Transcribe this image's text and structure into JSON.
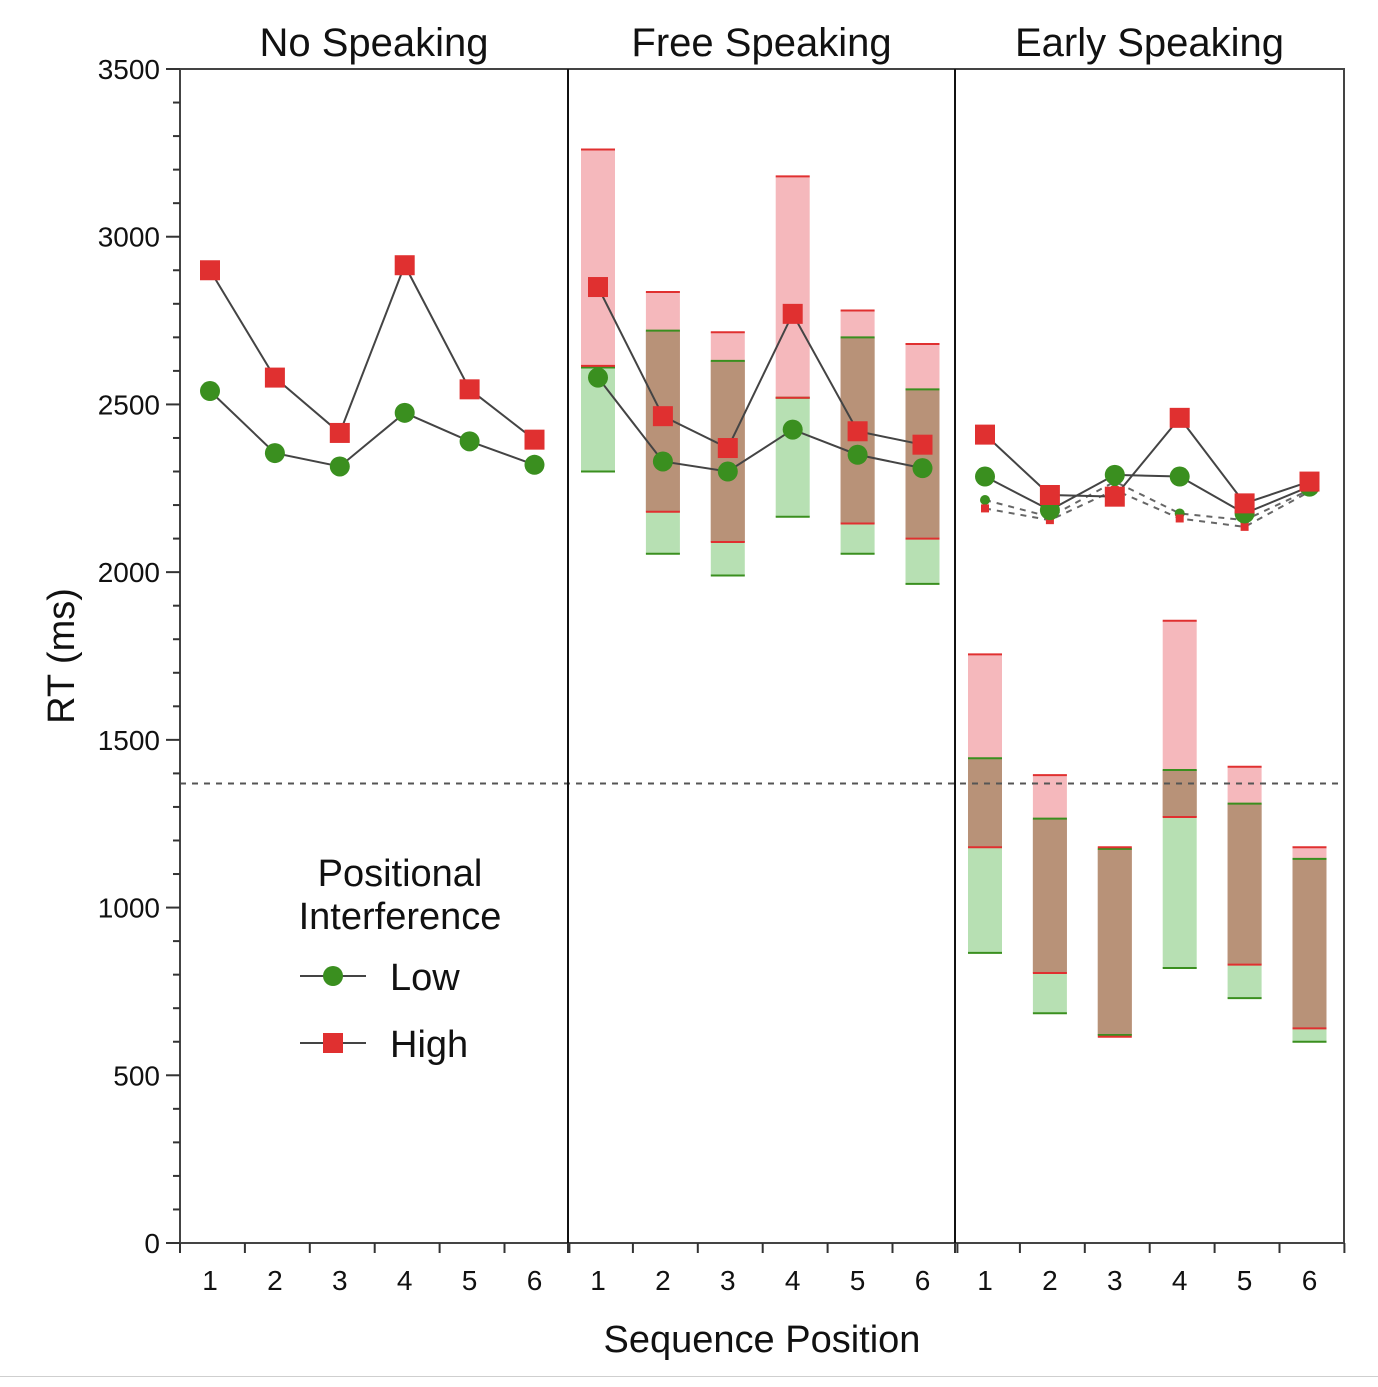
{
  "chart_data": {
    "type": "line",
    "ylabel": "RT (ms)",
    "xlabel": "Sequence Position",
    "ylim": [
      0,
      3500
    ],
    "yticks": [
      0,
      500,
      1000,
      1500,
      2000,
      2500,
      3000,
      3500
    ],
    "categories": [
      "1",
      "2",
      "3",
      "4",
      "5",
      "6"
    ],
    "reference_line": 1370,
    "legend": {
      "title_line1": "Positional",
      "title_line2": "Interference",
      "position": "lower-left of first panel",
      "items": [
        {
          "label": "Low",
          "color": "#3a8f1f",
          "marker": "circle"
        },
        {
          "label": "High",
          "color": "#e03030",
          "marker": "square"
        }
      ]
    },
    "colors": {
      "low": "#3a8f1f",
      "high": "#e03030",
      "low_band": "#9fd59a",
      "high_band": "#f2a0a6",
      "overlap_band": "#b89278",
      "line": "#444444"
    },
    "panels": [
      {
        "title": "No Speaking",
        "series": [
          {
            "name": "Low",
            "values": [
              2540,
              2355,
              2315,
              2475,
              2390,
              2320
            ]
          },
          {
            "name": "High",
            "values": [
              2900,
              2580,
              2415,
              2915,
              2545,
              2395
            ]
          }
        ]
      },
      {
        "title": "Free Speaking",
        "series": [
          {
            "name": "Low",
            "values": [
              2580,
              2330,
              2300,
              2425,
              2350,
              2310
            ]
          },
          {
            "name": "High",
            "values": [
              2850,
              2465,
              2370,
              2770,
              2420,
              2380
            ]
          }
        ],
        "bands": {
          "low": [
            [
              2300,
              2610
            ],
            [
              2055,
              2720
            ],
            [
              1990,
              2630
            ],
            [
              2165,
              2520
            ],
            [
              2055,
              2700
            ],
            [
              1965,
              2545
            ]
          ],
          "high": [
            [
              2615,
              3260
            ],
            [
              2180,
              2835
            ],
            [
              2090,
              2715
            ],
            [
              2520,
              3180
            ],
            [
              2145,
              2780
            ],
            [
              2100,
              2680
            ]
          ]
        }
      },
      {
        "title": "Early Speaking",
        "series": [
          {
            "name": "Low",
            "values": [
              2285,
              2185,
              2290,
              2285,
              2175,
              2255
            ]
          },
          {
            "name": "High",
            "values": [
              2410,
              2230,
              2225,
              2460,
              2205,
              2270
            ]
          }
        ],
        "dashed_series": [
          {
            "name": "Low",
            "values": [
              2215,
              2165,
              2270,
              2175,
              2155,
              2245
            ]
          },
          {
            "name": "High",
            "values": [
              2190,
              2155,
              2245,
              2160,
              2135,
              2240
            ]
          }
        ],
        "bands": {
          "low": [
            [
              865,
              1445
            ],
            [
              685,
              1265
            ],
            [
              620,
              1175
            ],
            [
              820,
              1410
            ],
            [
              730,
              1310
            ],
            [
              600,
              1145
            ]
          ],
          "high": [
            [
              1180,
              1755
            ],
            [
              805,
              1395
            ],
            [
              615,
              1180
            ],
            [
              1270,
              1855
            ],
            [
              830,
              1420
            ],
            [
              640,
              1180
            ]
          ]
        }
      }
    ]
  }
}
